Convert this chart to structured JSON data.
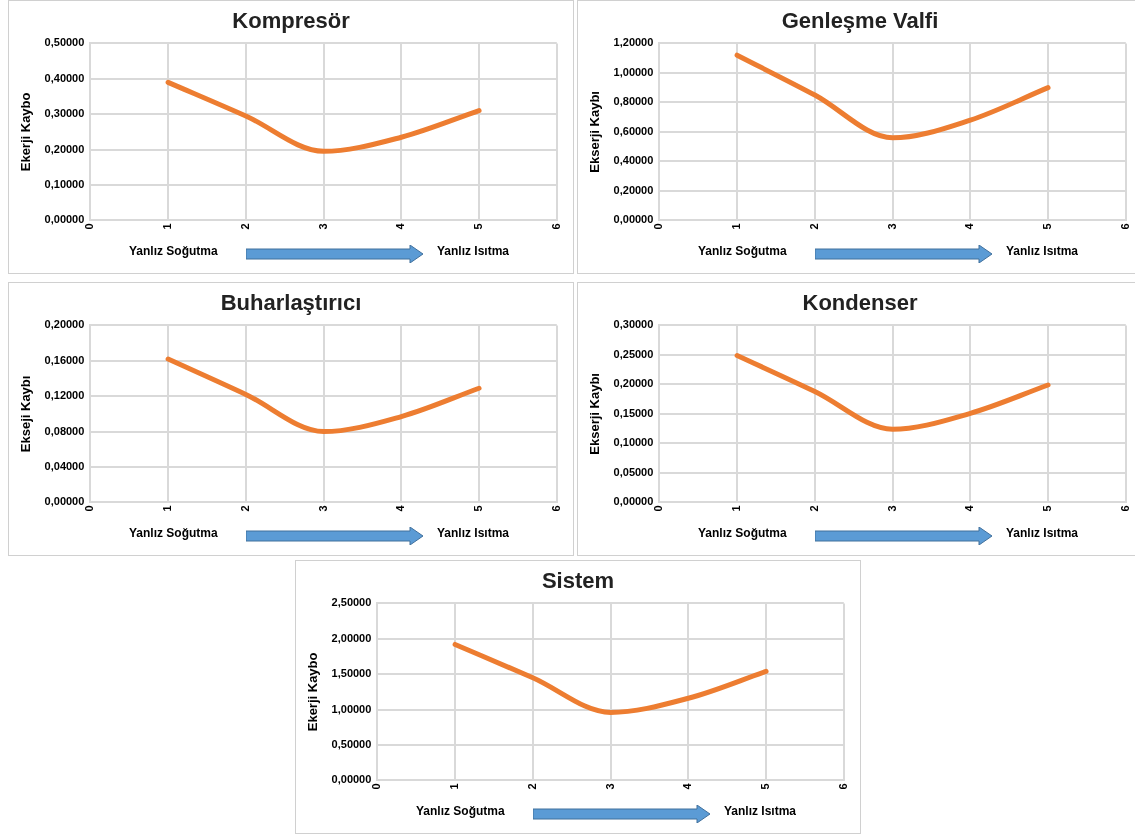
{
  "chart_data": [
    {
      "type": "line",
      "title": "Kompresör",
      "ylabel": "Ekerji Kaybo",
      "x": [
        1,
        2,
        3,
        4,
        5
      ],
      "values": [
        0.39,
        0.295,
        0.195,
        0.235,
        0.31
      ],
      "color": "#ed7d31",
      "xlim": [
        0,
        6
      ],
      "xticks": [
        0,
        1,
        2,
        3,
        4,
        5,
        6
      ],
      "ylim": [
        0,
        0.5
      ],
      "yticks": [
        {
          "value": 0,
          "label": "0,00000"
        },
        {
          "value": 0.1,
          "label": "0,10000"
        },
        {
          "value": 0.2,
          "label": "0,20000"
        },
        {
          "value": 0.3,
          "label": "0,30000"
        },
        {
          "value": 0.4,
          "label": "0,40000"
        },
        {
          "value": 0.5,
          "label": "0,50000"
        }
      ],
      "grid": true,
      "marker": "none",
      "annotations": [
        "Yanlız Soğutma",
        "Yanlız Isıtma"
      ]
    },
    {
      "type": "line",
      "title": "Genleşme Valfi",
      "ylabel": "Ekserji Kaybı",
      "x": [
        1,
        2,
        3,
        4,
        5
      ],
      "values": [
        1.12,
        0.85,
        0.56,
        0.68,
        0.9
      ],
      "color": "#ed7d31",
      "xlim": [
        0,
        6
      ],
      "xticks": [
        0,
        1,
        2,
        3,
        4,
        5,
        6
      ],
      "ylim": [
        0,
        1.2
      ],
      "yticks": [
        {
          "value": 0,
          "label": "0,00000"
        },
        {
          "value": 0.2,
          "label": "0,20000"
        },
        {
          "value": 0.4,
          "label": "0,40000"
        },
        {
          "value": 0.6,
          "label": "0,60000"
        },
        {
          "value": 0.8,
          "label": "0,80000"
        },
        {
          "value": 1,
          "label": "1,00000"
        },
        {
          "value": 1.2,
          "label": "1,20000"
        }
      ],
      "grid": true,
      "marker": "none",
      "annotations": [
        "Yanlız Soğutma",
        "Yanlız Isıtma"
      ]
    },
    {
      "type": "line",
      "title": "Buharlaştırıcı",
      "ylabel": "Ekseji Kaybı",
      "x": [
        1,
        2,
        3,
        4,
        5
      ],
      "values": [
        0.162,
        0.122,
        0.08,
        0.097,
        0.129
      ],
      "color": "#ed7d31",
      "xlim": [
        0,
        6
      ],
      "xticks": [
        0,
        1,
        2,
        3,
        4,
        5,
        6
      ],
      "ylim": [
        0,
        0.2
      ],
      "yticks": [
        {
          "value": 0,
          "label": "0,00000"
        },
        {
          "value": 0.04,
          "label": "0,04000"
        },
        {
          "value": 0.08,
          "label": "0,08000"
        },
        {
          "value": 0.12,
          "label": "0,12000"
        },
        {
          "value": 0.16,
          "label": "0,16000"
        },
        {
          "value": 0.2,
          "label": "0,20000"
        }
      ],
      "grid": true,
      "marker": "none",
      "annotations": [
        "Yanlız Soğutma",
        "Yanlız Isıtma"
      ]
    },
    {
      "type": "line",
      "title": "Kondenser",
      "ylabel": "Ekserji Kaybı",
      "x": [
        1,
        2,
        3,
        4,
        5
      ],
      "values": [
        0.249,
        0.188,
        0.124,
        0.151,
        0.199
      ],
      "color": "#ed7d31",
      "xlim": [
        0,
        6
      ],
      "xticks": [
        0,
        1,
        2,
        3,
        4,
        5,
        6
      ],
      "ylim": [
        0,
        0.3
      ],
      "yticks": [
        {
          "value": 0,
          "label": "0,00000"
        },
        {
          "value": 0.05,
          "label": "0,05000"
        },
        {
          "value": 0.1,
          "label": "0,10000"
        },
        {
          "value": 0.15,
          "label": "0,15000"
        },
        {
          "value": 0.2,
          "label": "0,20000"
        },
        {
          "value": 0.25,
          "label": "0,25000"
        },
        {
          "value": 0.3,
          "label": "0,30000"
        }
      ],
      "grid": true,
      "marker": "none",
      "annotations": [
        "Yanlız Soğutma",
        "Yanlız Isıtma"
      ]
    },
    {
      "type": "line",
      "title": "Sistem",
      "ylabel": "Ekerji Kaybo",
      "x": [
        1,
        2,
        3,
        4,
        5
      ],
      "values": [
        1.92,
        1.45,
        0.96,
        1.16,
        1.54
      ],
      "color": "#ed7d31",
      "xlim": [
        0,
        6
      ],
      "xticks": [
        0,
        1,
        2,
        3,
        4,
        5,
        6
      ],
      "ylim": [
        0,
        2.5
      ],
      "yticks": [
        {
          "value": 0,
          "label": "0,00000"
        },
        {
          "value": 0.5,
          "label": "0,50000"
        },
        {
          "value": 1,
          "label": "1,00000"
        },
        {
          "value": 1.5,
          "label": "1,50000"
        },
        {
          "value": 2,
          "label": "2,00000"
        },
        {
          "value": 2.5,
          "label": "2,50000"
        }
      ],
      "grid": true,
      "marker": "none",
      "annotations": [
        "Yanlız Soğutma",
        "Yanlız Isıtma"
      ]
    }
  ]
}
